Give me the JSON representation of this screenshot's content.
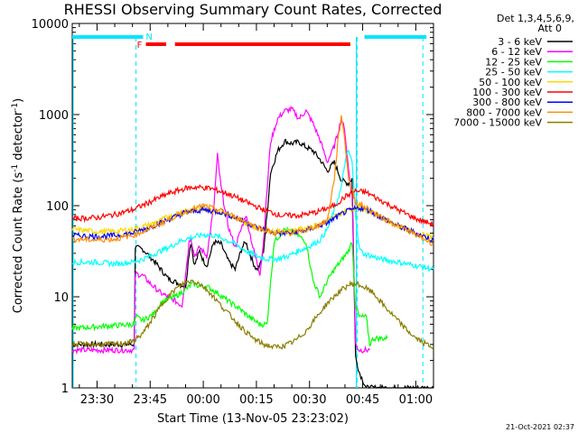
{
  "chart_data": {
    "type": "line",
    "title": "RHESSI Observing Summary Count Rates, Corrected",
    "xlabel": "Start Time (13-Nov-05 23:23:02)",
    "ylabel_parts": [
      "Corrected Count Rate (s",
      "-1",
      " detector",
      "-1",
      ")"
    ],
    "y_scale": "log",
    "ylim": [
      1,
      10000
    ],
    "y_ticks": [
      1,
      10,
      100,
      1000,
      10000
    ],
    "y_tick_labels": [
      "1",
      "10",
      "100",
      "1000",
      "10000"
    ],
    "xlim_minutes": [
      -37,
      65
    ],
    "x_ticks_minutes": [
      -30,
      -15,
      0,
      15,
      30,
      45,
      60
    ],
    "x_tick_labels": [
      "23:30",
      "23:45",
      "00:00",
      "00:15",
      "00:30",
      "00:45",
      "01:00"
    ],
    "legend_header": [
      "Det 1,3,4,5,6,9,",
      "Att 0"
    ],
    "legend_position": "right",
    "footer_timestamp": "21-Oct-2021 02:37",
    "flag_labels": {
      "night": "N",
      "flare": "F"
    },
    "flags": {
      "night_intervals": [
        [
          -37,
          -17
        ],
        [
          45.5,
          63
        ]
      ],
      "flare_intervals": [
        [
          -16.2,
          -10.5
        ],
        [
          -8,
          41.5
        ]
      ],
      "night_boundaries": [
        -19,
        43.5,
        62
      ]
    },
    "series": [
      {
        "name": "3 - 6 keV",
        "color": "#000000",
        "points": [
          [
            -37,
            3
          ],
          [
            -19.5,
            3
          ],
          [
            -19.2,
            35
          ],
          [
            -17,
            33
          ],
          [
            -14,
            25
          ],
          [
            -12,
            20
          ],
          [
            -10,
            16
          ],
          [
            -7,
            14
          ],
          [
            -5,
            13
          ],
          [
            -4,
            30
          ],
          [
            -3.5,
            40
          ],
          [
            -2.5,
            22
          ],
          [
            -1,
            32
          ],
          [
            0,
            25
          ],
          [
            1,
            22
          ],
          [
            3,
            40
          ],
          [
            5,
            38
          ],
          [
            7,
            25
          ],
          [
            9,
            20
          ],
          [
            11,
            35
          ],
          [
            12,
            40
          ],
          [
            14,
            24
          ],
          [
            15,
            20
          ],
          [
            16,
            22
          ],
          [
            17,
            32
          ],
          [
            18,
            80
          ],
          [
            19,
            230
          ],
          [
            21,
            400
          ],
          [
            23,
            510
          ],
          [
            25,
            480
          ],
          [
            27,
            500
          ],
          [
            29,
            440
          ],
          [
            31,
            400
          ],
          [
            33,
            320
          ],
          [
            35,
            240
          ],
          [
            37,
            300
          ],
          [
            39,
            190
          ],
          [
            41,
            175
          ],
          [
            42,
            200
          ],
          [
            43,
            2.2
          ],
          [
            44,
            1.5
          ],
          [
            46,
            1
          ],
          [
            65,
            1
          ]
        ]
      },
      {
        "name": "6 - 12 keV",
        "color": "#ff00ff",
        "points": [
          [
            -37,
            2.6
          ],
          [
            -19.5,
            2.6
          ],
          [
            -19.2,
            18
          ],
          [
            -17,
            17
          ],
          [
            -15,
            14
          ],
          [
            -12,
            11
          ],
          [
            -10,
            10
          ],
          [
            -8,
            9
          ],
          [
            -6,
            8
          ],
          [
            -4,
            40
          ],
          [
            -3.5,
            45
          ],
          [
            -2.5,
            28
          ],
          [
            -1,
            35
          ],
          [
            1,
            28
          ],
          [
            3,
            100
          ],
          [
            4,
            360
          ],
          [
            5,
            160
          ],
          [
            7,
            60
          ],
          [
            9,
            35
          ],
          [
            11,
            60
          ],
          [
            12,
            80
          ],
          [
            14,
            35
          ],
          [
            15,
            25
          ],
          [
            16,
            18
          ],
          [
            17,
            40
          ],
          [
            18,
            150
          ],
          [
            19,
            500
          ],
          [
            21,
            900
          ],
          [
            23,
            1100
          ],
          [
            25,
            1150
          ],
          [
            27,
            900
          ],
          [
            29,
            1100
          ],
          [
            31,
            800
          ],
          [
            33,
            520
          ],
          [
            35,
            300
          ],
          [
            37,
            450
          ],
          [
            39,
            900
          ],
          [
            40,
            650
          ],
          [
            41,
            250
          ],
          [
            42,
            130
          ],
          [
            43,
            3
          ],
          [
            44,
            2.6
          ],
          [
            46,
            2.6
          ],
          [
            47,
            2.6
          ]
        ]
      },
      {
        "name": "12 - 25 keV",
        "color": "#00ff00",
        "points": [
          [
            -37,
            4.5
          ],
          [
            -19.5,
            5
          ],
          [
            -19,
            6
          ],
          [
            -17,
            5.5
          ],
          [
            -14,
            6.5
          ],
          [
            -12,
            8.5
          ],
          [
            -10,
            9.5
          ],
          [
            -8,
            10
          ],
          [
            -5,
            12
          ],
          [
            -3,
            14
          ],
          [
            -1,
            13
          ],
          [
            1,
            13
          ],
          [
            4,
            11
          ],
          [
            7,
            9
          ],
          [
            10,
            7.5
          ],
          [
            13,
            6
          ],
          [
            16,
            5
          ],
          [
            18,
            5
          ],
          [
            20,
            40
          ],
          [
            23,
            55
          ],
          [
            26,
            50
          ],
          [
            29,
            40
          ],
          [
            31,
            15
          ],
          [
            33,
            10
          ],
          [
            35,
            15
          ],
          [
            37,
            20
          ],
          [
            39,
            25
          ],
          [
            41,
            32
          ],
          [
            42,
            40
          ],
          [
            43,
            8
          ],
          [
            44,
            6
          ],
          [
            46,
            6
          ],
          [
            47,
            3
          ],
          [
            48,
            3.5
          ],
          [
            52,
            3.5
          ]
        ]
      },
      {
        "name": "25 - 50 keV",
        "color": "#00ffff",
        "points": [
          [
            -37,
            24
          ],
          [
            -30,
            24
          ],
          [
            -25,
            23
          ],
          [
            -20,
            24
          ],
          [
            -17,
            26
          ],
          [
            -15,
            28
          ],
          [
            -12,
            32
          ],
          [
            -9,
            36
          ],
          [
            -6,
            42
          ],
          [
            -3,
            45
          ],
          [
            0,
            48
          ],
          [
            3,
            47
          ],
          [
            6,
            43
          ],
          [
            9,
            38
          ],
          [
            12,
            32
          ],
          [
            15,
            28
          ],
          [
            18,
            26
          ],
          [
            21,
            26
          ],
          [
            24,
            28
          ],
          [
            27,
            32
          ],
          [
            30,
            36
          ],
          [
            33,
            42
          ],
          [
            35,
            55
          ],
          [
            37,
            90
          ],
          [
            39,
            160
          ],
          [
            40,
            300
          ],
          [
            41,
            400
          ],
          [
            42,
            300
          ],
          [
            43,
            80
          ],
          [
            44,
            35
          ],
          [
            45,
            30
          ],
          [
            50,
            26
          ],
          [
            55,
            24
          ],
          [
            60,
            22
          ],
          [
            65,
            20
          ]
        ]
      },
      {
        "name": "50 - 100 keV",
        "color": "#ffd700",
        "points": [
          [
            -37,
            55
          ],
          [
            -30,
            52
          ],
          [
            -25,
            52
          ],
          [
            -20,
            55
          ],
          [
            -15,
            62
          ],
          [
            -10,
            75
          ],
          [
            -5,
            90
          ],
          [
            0,
            92
          ],
          [
            5,
            85
          ],
          [
            10,
            70
          ],
          [
            15,
            58
          ],
          [
            20,
            52
          ],
          [
            25,
            53
          ],
          [
            30,
            58
          ],
          [
            35,
            68
          ],
          [
            40,
            88
          ],
          [
            44,
            95
          ],
          [
            47,
            85
          ],
          [
            50,
            75
          ],
          [
            55,
            60
          ],
          [
            60,
            50
          ],
          [
            65,
            45
          ]
        ]
      },
      {
        "name": "100 - 300 keV",
        "color": "#ff0000",
        "points": [
          [
            -37,
            72
          ],
          [
            -30,
            74
          ],
          [
            -25,
            80
          ],
          [
            -20,
            90
          ],
          [
            -15,
            110
          ],
          [
            -10,
            135
          ],
          [
            -5,
            155
          ],
          [
            -2,
            160
          ],
          [
            2,
            155
          ],
          [
            7,
            135
          ],
          [
            12,
            110
          ],
          [
            17,
            90
          ],
          [
            22,
            78
          ],
          [
            27,
            78
          ],
          [
            32,
            85
          ],
          [
            37,
            100
          ],
          [
            40,
            125
          ],
          [
            43,
            145
          ],
          [
            46,
            140
          ],
          [
            50,
            115
          ],
          [
            55,
            90
          ],
          [
            60,
            72
          ],
          [
            65,
            62
          ]
        ]
      },
      {
        "name": "300 - 800 keV",
        "color": "#0000ff",
        "points": [
          [
            -37,
            47
          ],
          [
            -30,
            46
          ],
          [
            -25,
            47
          ],
          [
            -20,
            50
          ],
          [
            -15,
            58
          ],
          [
            -10,
            70
          ],
          [
            -5,
            85
          ],
          [
            0,
            90
          ],
          [
            5,
            85
          ],
          [
            10,
            72
          ],
          [
            15,
            58
          ],
          [
            20,
            50
          ],
          [
            25,
            50
          ],
          [
            30,
            55
          ],
          [
            35,
            65
          ],
          [
            40,
            85
          ],
          [
            44,
            95
          ],
          [
            47,
            88
          ],
          [
            50,
            75
          ],
          [
            55,
            60
          ],
          [
            60,
            50
          ],
          [
            65,
            42
          ]
        ]
      },
      {
        "name": "800 - 7000 keV",
        "color": "#ff8c00",
        "points": [
          [
            -37,
            43
          ],
          [
            -30,
            42
          ],
          [
            -25,
            43
          ],
          [
            -20,
            47
          ],
          [
            -15,
            56
          ],
          [
            -10,
            70
          ],
          [
            -5,
            85
          ],
          [
            0,
            100
          ],
          [
            5,
            88
          ],
          [
            10,
            72
          ],
          [
            15,
            58
          ],
          [
            20,
            50
          ],
          [
            25,
            50
          ],
          [
            30,
            55
          ],
          [
            35,
            68
          ],
          [
            37,
            200
          ],
          [
            38,
            500
          ],
          [
            39,
            1000
          ],
          [
            40,
            500
          ],
          [
            41,
            200
          ],
          [
            43,
            110
          ],
          [
            46,
            95
          ],
          [
            50,
            75
          ],
          [
            55,
            60
          ],
          [
            60,
            48
          ],
          [
            65,
            38
          ]
        ]
      },
      {
        "name": "7000 - 15000 keV",
        "color": "#8b7d00",
        "points": [
          [
            -37,
            3
          ],
          [
            -25,
            3
          ],
          [
            -20,
            3.2
          ],
          [
            -17,
            4
          ],
          [
            -14,
            6
          ],
          [
            -11,
            9
          ],
          [
            -8,
            12
          ],
          [
            -5,
            14.5
          ],
          [
            -3,
            15
          ],
          [
            -1,
            14
          ],
          [
            2,
            11
          ],
          [
            5,
            8
          ],
          [
            8,
            6
          ],
          [
            11,
            4.5
          ],
          [
            14,
            3.5
          ],
          [
            17,
            3
          ],
          [
            20,
            2.8
          ],
          [
            23,
            2.9
          ],
          [
            26,
            3.3
          ],
          [
            29,
            4.2
          ],
          [
            32,
            6
          ],
          [
            35,
            8.5
          ],
          [
            38,
            11
          ],
          [
            41,
            13.5
          ],
          [
            43,
            14
          ],
          [
            45,
            13
          ],
          [
            48,
            11
          ],
          [
            51,
            8
          ],
          [
            54,
            6
          ],
          [
            57,
            4.5
          ],
          [
            60,
            3.5
          ],
          [
            63,
            3
          ],
          [
            65,
            2.8
          ]
        ]
      }
    ]
  }
}
